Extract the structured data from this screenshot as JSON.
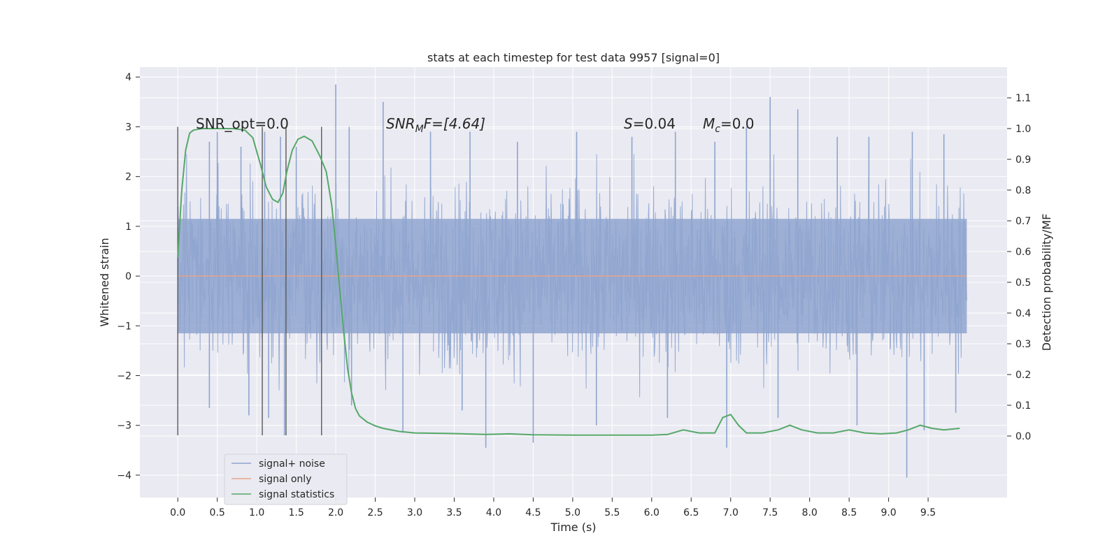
{
  "chart_data": {
    "type": "line",
    "title": "stats at each timestep for test data 9957 [signal=0]",
    "xlabel": "Time (s)",
    "ylabel": "Whitened strain",
    "y2label": "Detection probability/MF",
    "xlim": [
      -0.48,
      10.5
    ],
    "ylim": [
      -4.45,
      4.2
    ],
    "y2lim": [
      -0.2,
      1.2
    ],
    "x_ticks": [
      "0.0",
      "0.5",
      "1.0",
      "1.5",
      "2.0",
      "2.5",
      "3.0",
      "3.5",
      "4.0",
      "4.5",
      "5.0",
      "5.5",
      "6.0",
      "6.5",
      "7.0",
      "7.5",
      "8.0",
      "8.5",
      "9.0",
      "9.5"
    ],
    "y_ticks": [
      "4",
      "3",
      "2",
      "1",
      "0",
      "−1",
      "−2",
      "−3",
      "−4"
    ],
    "y2_ticks": [
      "1.1",
      "1.0",
      "0.9",
      "0.8",
      "0.7",
      "0.6",
      "0.5",
      "0.4",
      "0.3",
      "0.2",
      "0.1",
      "0.0"
    ],
    "grid": true,
    "legend_position": "lower-left",
    "annotations": {
      "snr_opt": "SNR_opt=0.0",
      "snr_mf_italic": "SNR",
      "snr_mf_sub": "M",
      "snr_mf_rest": "F=[4.64]",
      "s_italic": "S",
      "s_rest": "=0.04",
      "mc_italic": "M",
      "mc_sub": "c",
      "mc_rest": "=0.0"
    },
    "vertical_lines_x": [
      0.0,
      1.07,
      1.37,
      1.82
    ],
    "vertical_lines_y_range": [
      -3.2,
      3.0
    ],
    "series": [
      {
        "name": "signal+ noise",
        "color": "#8fa5cf",
        "x_range": [
          0.0,
          9.99
        ],
        "spikes": [
          {
            "x": 0.4,
            "y": 2.7
          },
          {
            "x": 0.5,
            "y": 2.9
          },
          {
            "x": 0.8,
            "y": 2.6
          },
          {
            "x": 1.1,
            "y": 2.9
          },
          {
            "x": 1.3,
            "y": 2.8
          },
          {
            "x": 1.5,
            "y": 2.6
          },
          {
            "x": 2.0,
            "y": 3.85
          },
          {
            "x": 2.17,
            "y": 3.0
          },
          {
            "x": 2.6,
            "y": 3.5
          },
          {
            "x": 3.2,
            "y": 2.9
          },
          {
            "x": 3.7,
            "y": 2.9
          },
          {
            "x": 4.3,
            "y": 2.7
          },
          {
            "x": 5.05,
            "y": 2.9
          },
          {
            "x": 5.75,
            "y": 2.8
          },
          {
            "x": 6.3,
            "y": 2.9
          },
          {
            "x": 6.8,
            "y": 2.7
          },
          {
            "x": 7.2,
            "y": 3.0
          },
          {
            "x": 7.5,
            "y": 3.6
          },
          {
            "x": 7.85,
            "y": 3.35
          },
          {
            "x": 8.35,
            "y": 2.8
          },
          {
            "x": 8.75,
            "y": 2.8
          },
          {
            "x": 9.3,
            "y": 2.9
          },
          {
            "x": 9.7,
            "y": 2.85
          },
          {
            "x": 0.4,
            "y": -2.65
          },
          {
            "x": 0.9,
            "y": -2.8
          },
          {
            "x": 1.15,
            "y": -2.85
          },
          {
            "x": 1.35,
            "y": -3.2
          },
          {
            "x": 2.2,
            "y": -2.6
          },
          {
            "x": 2.85,
            "y": -3.15
          },
          {
            "x": 3.6,
            "y": -2.7
          },
          {
            "x": 3.9,
            "y": -3.45
          },
          {
            "x": 4.5,
            "y": -3.35
          },
          {
            "x": 5.3,
            "y": -3.0
          },
          {
            "x": 6.2,
            "y": -2.85
          },
          {
            "x": 6.95,
            "y": -3.45
          },
          {
            "x": 7.6,
            "y": -2.85
          },
          {
            "x": 8.6,
            "y": -3.0
          },
          {
            "x": 9.23,
            "y": -4.05
          },
          {
            "x": 9.45,
            "y": -3.1
          },
          {
            "x": 9.85,
            "y": -2.75
          }
        ]
      },
      {
        "name": "signal only",
        "color": "#e5a48a",
        "x": [
          0.0,
          9.99
        ],
        "y": [
          0.0,
          0.0
        ]
      },
      {
        "name": "signal statistics",
        "color": "#55a868",
        "x": [
          0.0,
          0.05,
          0.1,
          0.15,
          0.2,
          0.3,
          0.5,
          0.7,
          0.85,
          0.95,
          1.05,
          1.12,
          1.2,
          1.27,
          1.33,
          1.38,
          1.45,
          1.52,
          1.6,
          1.7,
          1.8,
          1.88,
          1.95,
          2.0,
          2.05,
          2.1,
          2.15,
          2.2,
          2.25,
          2.3,
          2.4,
          2.5,
          2.6,
          2.8,
          3.0,
          3.5,
          3.9,
          4.2,
          4.5,
          5.0,
          5.5,
          6.0,
          6.2,
          6.4,
          6.6,
          6.8,
          6.9,
          7.0,
          7.1,
          7.2,
          7.4,
          7.6,
          7.75,
          7.9,
          8.1,
          8.3,
          8.5,
          8.7,
          8.9,
          9.1,
          9.25,
          9.4,
          9.55,
          9.7,
          9.9
        ],
        "y": [
          0.58,
          0.8,
          0.93,
          0.985,
          0.995,
          1.0,
          1.0,
          1.0,
          0.995,
          0.97,
          0.88,
          0.81,
          0.77,
          0.76,
          0.79,
          0.86,
          0.93,
          0.965,
          0.975,
          0.96,
          0.91,
          0.86,
          0.75,
          0.62,
          0.48,
          0.34,
          0.22,
          0.14,
          0.09,
          0.065,
          0.045,
          0.033,
          0.025,
          0.015,
          0.01,
          0.008,
          0.005,
          0.007,
          0.004,
          0.003,
          0.003,
          0.003,
          0.005,
          0.02,
          0.01,
          0.01,
          0.06,
          0.07,
          0.035,
          0.01,
          0.01,
          0.02,
          0.035,
          0.02,
          0.01,
          0.01,
          0.02,
          0.01,
          0.007,
          0.01,
          0.02,
          0.035,
          0.025,
          0.02,
          0.025
        ]
      }
    ]
  }
}
